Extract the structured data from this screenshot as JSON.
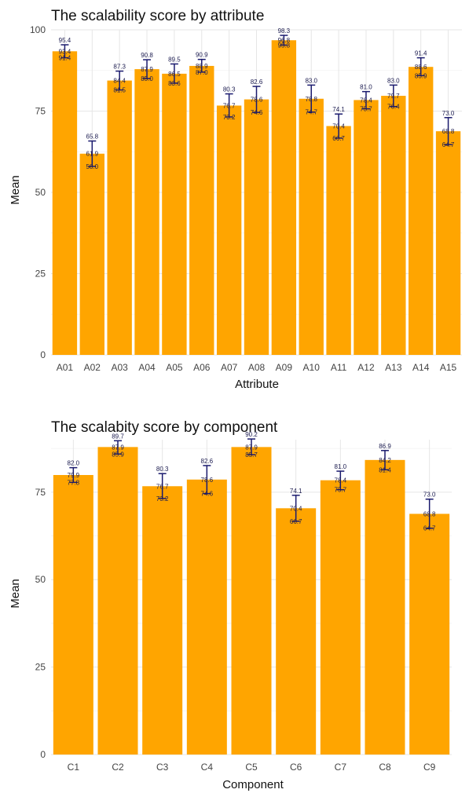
{
  "chart_data": [
    {
      "type": "bar",
      "title": "The scalability score by attribute",
      "xlabel": "Attribute",
      "ylabel": "Mean",
      "ylim": [
        0,
        100
      ],
      "yticks": [
        0,
        25,
        50,
        75,
        100
      ],
      "grid": true,
      "bar_color": "#FFA500",
      "errorbar_color": "#1a1a6e",
      "categories": [
        "A01",
        "A02",
        "A03",
        "A04",
        "A05",
        "A06",
        "A07",
        "A08",
        "A09",
        "A10",
        "A11",
        "A12",
        "A13",
        "A14",
        "A15"
      ],
      "values": [
        93.4,
        61.9,
        84.4,
        87.9,
        86.5,
        88.9,
        76.7,
        78.6,
        96.8,
        78.8,
        70.4,
        78.4,
        79.7,
        88.6,
        68.8
      ],
      "upper": [
        95.4,
        65.8,
        87.3,
        90.8,
        89.5,
        90.9,
        80.3,
        82.6,
        98.3,
        83.0,
        74.1,
        81.0,
        83.0,
        91.4,
        73.0
      ],
      "lower": [
        91.4,
        58.0,
        81.5,
        85.0,
        83.6,
        87.0,
        73.2,
        74.6,
        95.3,
        74.7,
        66.7,
        75.7,
        76.4,
        85.9,
        64.7
      ]
    },
    {
      "type": "bar",
      "title": "The scalabity score by component",
      "xlabel": "Component",
      "ylabel": "Mean",
      "ylim": [
        0,
        90
      ],
      "yticks": [
        0,
        25,
        50,
        75
      ],
      "grid": true,
      "bar_color": "#FFA500",
      "errorbar_color": "#1a1a6e",
      "categories": [
        "C1",
        "C2",
        "C3",
        "C4",
        "C5",
        "C6",
        "C7",
        "C8",
        "C9"
      ],
      "values": [
        79.9,
        87.9,
        76.7,
        78.6,
        87.9,
        70.4,
        78.4,
        84.2,
        68.8
      ],
      "upper": [
        82.0,
        89.7,
        80.3,
        82.6,
        90.2,
        74.1,
        81.0,
        86.9,
        73.0
      ],
      "lower": [
        77.8,
        85.9,
        73.2,
        74.6,
        85.7,
        66.7,
        75.7,
        81.4,
        64.7
      ]
    }
  ]
}
